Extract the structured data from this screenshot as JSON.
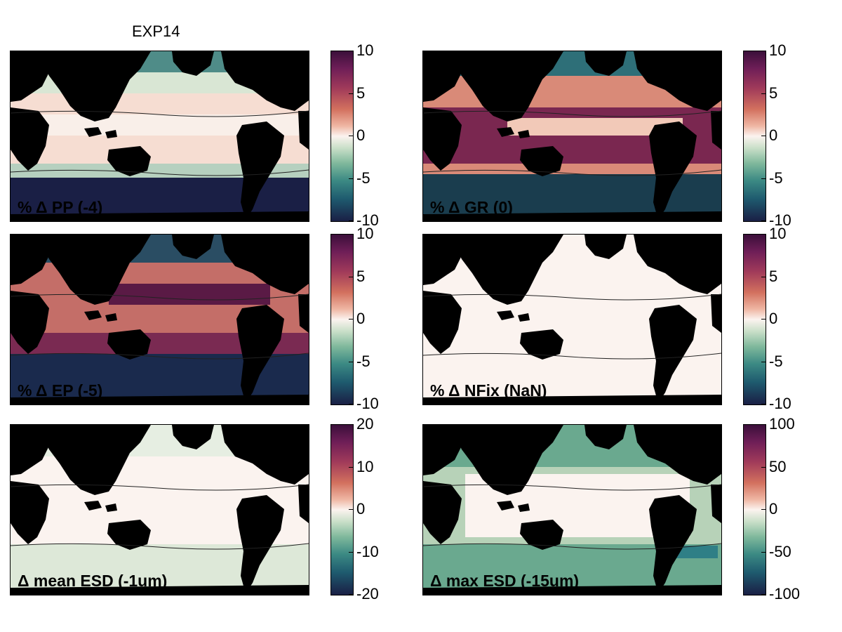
{
  "figure_title": "EXP14",
  "chart_data": [
    {
      "type": "heatmap",
      "title": "% Δ PP (-4)",
      "colorbar_ticks": [
        "10",
        "5",
        "0",
        "-5",
        "-10"
      ],
      "clim": [
        -10,
        10
      ],
      "dominant_colors": [
        "#f6ddd2",
        "#0f3d4a",
        "#1a1f45"
      ]
    },
    {
      "type": "heatmap",
      "title": "% Δ GR (0)",
      "colorbar_ticks": [
        "10",
        "5",
        "0",
        "-5",
        "-10"
      ],
      "clim": [
        -10,
        10
      ],
      "dominant_colors": [
        "#7a2750",
        "#d98a78",
        "#1a3d4e"
      ]
    },
    {
      "type": "heatmap",
      "title": "% Δ EP (-5)",
      "colorbar_ticks": [
        "10",
        "5",
        "0",
        "-5",
        "-10"
      ],
      "clim": [
        -10,
        10
      ],
      "dominant_colors": [
        "#5a1a45",
        "#c46e68",
        "#1a2a4d"
      ]
    },
    {
      "type": "heatmap",
      "title": "% Δ NFix (NaN)",
      "colorbar_ticks": [
        "10",
        "5",
        "0",
        "-5",
        "-10"
      ],
      "clim": [
        -10,
        10
      ],
      "dominant_colors": [
        "#fbf3ef"
      ]
    },
    {
      "type": "heatmap",
      "title": "Δ mean ESD (-1um)",
      "colorbar_ticks": [
        "20",
        "10",
        "0",
        "-10",
        "-20"
      ],
      "clim": [
        -20,
        20
      ],
      "dominant_colors": [
        "#fbf3ef",
        "#dde8d8"
      ]
    },
    {
      "type": "heatmap",
      "title": "Δ max ESD (-15um)",
      "colorbar_ticks": [
        "100",
        "50",
        "0",
        "-50",
        "-100"
      ],
      "clim": [
        -100,
        100
      ],
      "dominant_colors": [
        "#fbf3ef",
        "#b7d2b8",
        "#6aa98f",
        "#2f7f86"
      ]
    }
  ]
}
